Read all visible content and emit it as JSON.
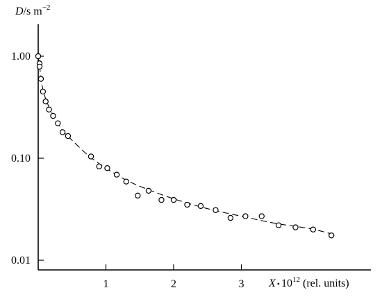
{
  "chart_data": {
    "type": "scatter",
    "ylabel_var": "D",
    "ylabel_unit": "/s m",
    "ylabel_exp": "−2",
    "xlabel_var": "X",
    "xlabel_dot": "•",
    "xlabel_base": "10",
    "xlabel_exp": "12",
    "xlabel_units": "(rel. units)",
    "x_ticks": [
      {
        "value": 1,
        "label": "1"
      },
      {
        "value": 2,
        "label": "2"
      },
      {
        "value": 3,
        "label": "3"
      }
    ],
    "y_ticks": [
      {
        "value": 1.0,
        "label": "1.00"
      },
      {
        "value": 0.1,
        "label": "0.10"
      },
      {
        "value": 0.01,
        "label": "0.01"
      }
    ],
    "y_scale": "log",
    "xlim": [
      0,
      4.9
    ],
    "ylim": [
      0.0085,
      2.2
    ],
    "points": [
      {
        "x": 0.0,
        "y": 1.0
      },
      {
        "x": 0.02,
        "y": 0.85
      },
      {
        "x": 0.02,
        "y": 0.79
      },
      {
        "x": 0.04,
        "y": 0.6
      },
      {
        "x": 0.07,
        "y": 0.45
      },
      {
        "x": 0.11,
        "y": 0.36
      },
      {
        "x": 0.16,
        "y": 0.3
      },
      {
        "x": 0.22,
        "y": 0.26
      },
      {
        "x": 0.29,
        "y": 0.22
      },
      {
        "x": 0.36,
        "y": 0.18
      },
      {
        "x": 0.44,
        "y": 0.165
      },
      {
        "x": 0.78,
        "y": 0.104
      },
      {
        "x": 0.9,
        "y": 0.083
      },
      {
        "x": 1.02,
        "y": 0.08
      },
      {
        "x": 1.16,
        "y": 0.069
      },
      {
        "x": 1.3,
        "y": 0.059
      },
      {
        "x": 1.47,
        "y": 0.043
      },
      {
        "x": 1.63,
        "y": 0.048
      },
      {
        "x": 1.82,
        "y": 0.039
      },
      {
        "x": 2.0,
        "y": 0.039
      },
      {
        "x": 2.2,
        "y": 0.035
      },
      {
        "x": 2.4,
        "y": 0.034
      },
      {
        "x": 2.62,
        "y": 0.031
      },
      {
        "x": 2.84,
        "y": 0.026
      },
      {
        "x": 3.06,
        "y": 0.027
      },
      {
        "x": 3.3,
        "y": 0.027
      },
      {
        "x": 3.55,
        "y": 0.022
      },
      {
        "x": 3.8,
        "y": 0.021
      },
      {
        "x": 4.06,
        "y": 0.02
      },
      {
        "x": 4.33,
        "y": 0.0175
      }
    ],
    "fit_line": {
      "style": "dashed",
      "points": [
        {
          "x": 0.0,
          "y": 1.0
        },
        {
          "x": 0.02,
          "y": 0.8
        },
        {
          "x": 0.05,
          "y": 0.55
        },
        {
          "x": 0.1,
          "y": 0.4
        },
        {
          "x": 0.2,
          "y": 0.28
        },
        {
          "x": 0.35,
          "y": 0.19
        },
        {
          "x": 0.5,
          "y": 0.15
        },
        {
          "x": 0.75,
          "y": 0.105
        },
        {
          "x": 1.0,
          "y": 0.08
        },
        {
          "x": 1.3,
          "y": 0.061
        },
        {
          "x": 1.6,
          "y": 0.05
        },
        {
          "x": 2.0,
          "y": 0.04
        },
        {
          "x": 2.5,
          "y": 0.032
        },
        {
          "x": 3.0,
          "y": 0.027
        },
        {
          "x": 3.5,
          "y": 0.023
        },
        {
          "x": 4.0,
          "y": 0.0205
        },
        {
          "x": 4.35,
          "y": 0.018
        }
      ]
    }
  }
}
